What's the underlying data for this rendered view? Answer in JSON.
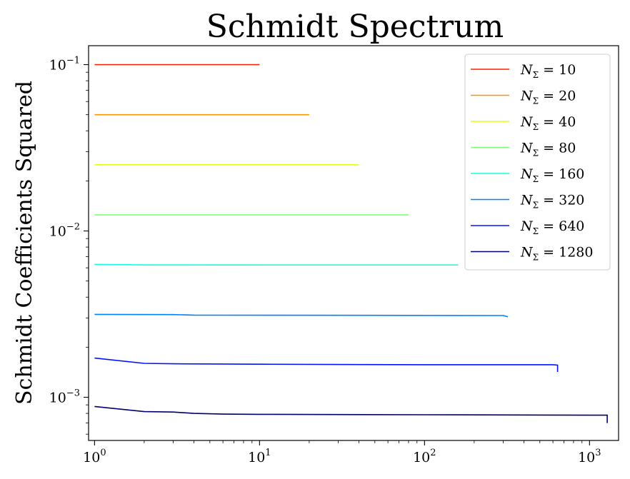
{
  "chart_data": {
    "type": "line",
    "title": "Schmidt Spectrum",
    "xlabel": "",
    "ylabel": "Schmidt Coefficients Squared",
    "xscale": "log",
    "yscale": "log",
    "xlim": [
      0.92,
      1500
    ],
    "ylim": [
      0.00055,
      0.13
    ],
    "xticks": [
      {
        "value": 1,
        "base": "10",
        "exp": "0"
      },
      {
        "value": 10,
        "base": "10",
        "exp": "1"
      },
      {
        "value": 100,
        "base": "10",
        "exp": "2"
      },
      {
        "value": 1000,
        "base": "10",
        "exp": "3"
      }
    ],
    "yticks": [
      {
        "value": 0.1,
        "base": "10",
        "exp": "−1"
      },
      {
        "value": 0.01,
        "base": "10",
        "exp": "−2"
      },
      {
        "value": 0.001,
        "base": "10",
        "exp": "−3"
      }
    ],
    "legend_position": "upper right",
    "legend_prefix": "N",
    "legend_subscript": "Σ",
    "series": [
      {
        "name": "N_Σ = 10",
        "label_value": "10",
        "color": "#ff2000",
        "points": [
          [
            1,
            0.1
          ],
          [
            10,
            0.1
          ]
        ]
      },
      {
        "name": "N_Σ = 20",
        "label_value": "20",
        "color": "#ff9400",
        "points": [
          [
            1,
            0.05
          ],
          [
            20,
            0.05
          ]
        ]
      },
      {
        "name": "N_Σ = 40",
        "label_value": "40",
        "color": "#e4ff13",
        "points": [
          [
            1,
            0.025
          ],
          [
            40,
            0.025
          ]
        ]
      },
      {
        "name": "N_Σ = 80",
        "label_value": "80",
        "color": "#7dff7a",
        "points": [
          [
            1,
            0.0125
          ],
          [
            80,
            0.0125
          ]
        ]
      },
      {
        "name": "N_Σ = 160",
        "label_value": "160",
        "color": "#16ffe1",
        "points": [
          [
            1,
            0.0063
          ],
          [
            2,
            0.00625
          ],
          [
            160,
            0.00624
          ]
        ]
      },
      {
        "name": "N_Σ = 320",
        "label_value": "320",
        "color": "#0080ff",
        "points": [
          [
            1,
            0.00315
          ],
          [
            3,
            0.00314
          ],
          [
            4,
            0.00312
          ],
          [
            300,
            0.0031
          ],
          [
            320,
            0.00305
          ]
        ]
      },
      {
        "name": "N_Σ = 640",
        "label_value": "640",
        "color": "#0014ff",
        "points": [
          [
            1,
            0.00172
          ],
          [
            2,
            0.0016
          ],
          [
            3,
            0.00159
          ],
          [
            10,
            0.00158
          ],
          [
            100,
            0.00157
          ],
          [
            600,
            0.00157
          ],
          [
            640,
            0.00156
          ],
          [
            640,
            0.00142
          ]
        ]
      },
      {
        "name": "N_Σ = 1280",
        "label_value": "1280",
        "color": "#00006a",
        "points": [
          [
            1,
            0.00088
          ],
          [
            2,
            0.00082
          ],
          [
            3,
            0.000815
          ],
          [
            4,
            0.0008
          ],
          [
            6,
            0.000792
          ],
          [
            10,
            0.00079
          ],
          [
            100,
            0.000785
          ],
          [
            1000,
            0.00078
          ],
          [
            1280,
            0.00078
          ],
          [
            1280,
            0.0007
          ]
        ]
      }
    ]
  }
}
